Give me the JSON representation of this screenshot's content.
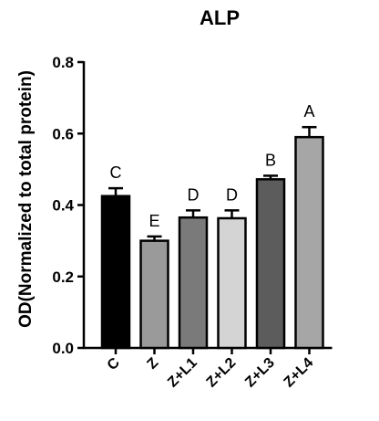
{
  "chart_data": {
    "type": "bar",
    "title": "ALP",
    "ylabel": "OD(Normalized to total protein)",
    "xlabel": "",
    "ylim": [
      0,
      0.8
    ],
    "yticks": [
      "0.0",
      "0.2",
      "0.4",
      "0.6",
      "0.8"
    ],
    "categories": [
      "C",
      "Z",
      "Z+L1",
      "Z+L2",
      "Z+L3",
      "Z+L4"
    ],
    "values": [
      0.425,
      0.3,
      0.365,
      0.363,
      0.472,
      0.59
    ],
    "errors": [
      0.022,
      0.012,
      0.02,
      0.022,
      0.01,
      0.028
    ],
    "letters": [
      "C",
      "E",
      "D",
      "D",
      "B",
      "A"
    ],
    "colors": [
      "#000000",
      "#9a9a9a",
      "#7a7a7a",
      "#d4d4d4",
      "#5c5c5c",
      "#a6a6a6"
    ],
    "grid": false,
    "legend": "none"
  }
}
